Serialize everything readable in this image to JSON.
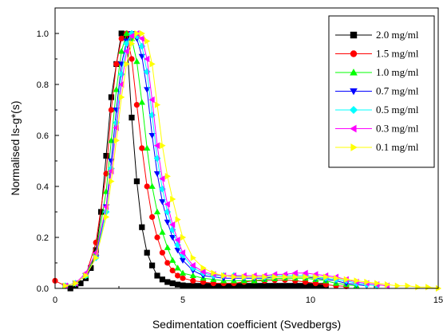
{
  "chart_data": {
    "type": "line",
    "title": "",
    "xlabel": "Sedimentation coefficient (Svedbergs)",
    "ylabel": "Normalised ls-g*(s)",
    "xlim": [
      0,
      15
    ],
    "ylim": [
      0,
      1.1
    ],
    "xticks": [
      "0",
      "5",
      "10",
      "15"
    ],
    "yticks": [
      "0.0",
      "0.2",
      "0.4",
      "0.6",
      "0.8",
      "1.0"
    ],
    "grid": false,
    "legend_position": "top-right",
    "series": [
      {
        "name": "2.0 mg/ml",
        "color": "#000000",
        "marker": "square",
        "x": [
          0.6,
          0.8,
          1.0,
          1.2,
          1.4,
          1.6,
          1.8,
          2.0,
          2.2,
          2.4,
          2.6,
          2.8,
          3.0,
          3.2,
          3.4,
          3.6,
          3.8,
          4.0,
          4.2,
          4.4,
          4.6,
          4.8,
          5.0,
          5.2,
          5.4,
          5.6,
          5.8,
          6.0,
          6.2,
          6.4,
          6.6,
          6.8,
          7.0,
          7.2,
          7.4,
          7.6,
          7.8,
          8.0,
          8.2,
          8.4,
          8.6,
          8.8,
          9.0,
          9.2,
          9.4,
          9.6,
          9.8,
          10.0,
          10.2,
          10.4,
          10.6
        ],
        "y": [
          0.0,
          0.01,
          0.02,
          0.04,
          0.08,
          0.15,
          0.3,
          0.52,
          0.75,
          0.88,
          1.0,
          0.99,
          0.67,
          0.42,
          0.24,
          0.14,
          0.09,
          0.05,
          0.035,
          0.025,
          0.02,
          0.015,
          0.012,
          0.01,
          0.01,
          0.01,
          0.01,
          0.01,
          0.01,
          0.01,
          0.01,
          0.01,
          0.01,
          0.01,
          0.01,
          0.01,
          0.01,
          0.01,
          0.01,
          0.01,
          0.01,
          0.01,
          0.01,
          0.01,
          0.01,
          0.01,
          0.01,
          0.01,
          0.01,
          0.01,
          0.01
        ]
      },
      {
        "name": "1.5 mg/ml",
        "color": "#ff0000",
        "marker": "circle",
        "x": [
          0.0,
          0.4,
          0.8,
          1.2,
          1.6,
          2.0,
          2.2,
          2.4,
          2.6,
          2.8,
          3.0,
          3.2,
          3.4,
          3.6,
          3.8,
          4.0,
          4.2,
          4.4,
          4.6,
          4.8,
          5.0,
          5.4,
          5.8,
          6.2,
          6.6,
          7.0,
          7.4,
          7.8,
          8.2,
          8.6,
          9.0,
          9.4,
          9.8,
          10.2,
          10.6,
          11.0,
          11.4
        ],
        "y": [
          0.03,
          0.01,
          0.02,
          0.05,
          0.18,
          0.45,
          0.7,
          0.88,
          0.98,
          1.0,
          0.9,
          0.72,
          0.55,
          0.4,
          0.28,
          0.2,
          0.14,
          0.1,
          0.07,
          0.05,
          0.04,
          0.03,
          0.025,
          0.02,
          0.02,
          0.02,
          0.025,
          0.03,
          0.03,
          0.032,
          0.033,
          0.03,
          0.025,
          0.02,
          0.015,
          0.01,
          0.008
        ]
      },
      {
        "name": "1.0 mg/ml",
        "color": "#00ff00",
        "marker": "triangle-up",
        "x": [
          0.4,
          0.8,
          1.2,
          1.6,
          2.0,
          2.2,
          2.4,
          2.6,
          2.8,
          3.0,
          3.2,
          3.4,
          3.6,
          3.8,
          4.0,
          4.2,
          4.4,
          4.6,
          4.8,
          5.0,
          5.4,
          5.8,
          6.2,
          6.6,
          7.0,
          7.4,
          7.8,
          8.2,
          8.6,
          9.0,
          9.4,
          9.8,
          10.2,
          10.6,
          11.0,
          11.4,
          11.8
        ],
        "y": [
          0.01,
          0.02,
          0.05,
          0.14,
          0.38,
          0.58,
          0.78,
          0.93,
          1.0,
          0.98,
          0.89,
          0.73,
          0.55,
          0.4,
          0.3,
          0.22,
          0.16,
          0.11,
          0.08,
          0.06,
          0.05,
          0.04,
          0.035,
          0.03,
          0.03,
          0.03,
          0.03,
          0.035,
          0.038,
          0.04,
          0.04,
          0.04,
          0.035,
          0.03,
          0.02,
          0.015,
          0.01
        ]
      },
      {
        "name": "0.7 mg/ml",
        "color": "#0000ff",
        "marker": "triangle-down",
        "x": [
          0.4,
          0.8,
          1.2,
          1.6,
          2.0,
          2.2,
          2.4,
          2.6,
          2.8,
          3.0,
          3.2,
          3.4,
          3.6,
          3.8,
          4.0,
          4.2,
          4.4,
          4.6,
          4.8,
          5.0,
          5.4,
          5.8,
          6.2,
          6.6,
          7.0,
          7.4,
          7.8,
          8.2,
          8.6,
          9.0,
          9.4,
          9.8,
          10.2,
          10.6,
          11.0,
          11.4,
          11.8,
          12.2
        ],
        "y": [
          0.01,
          0.02,
          0.05,
          0.12,
          0.32,
          0.5,
          0.7,
          0.88,
          0.97,
          1.0,
          0.98,
          0.91,
          0.78,
          0.6,
          0.45,
          0.34,
          0.26,
          0.2,
          0.15,
          0.11,
          0.07,
          0.05,
          0.045,
          0.04,
          0.04,
          0.04,
          0.04,
          0.04,
          0.045,
          0.045,
          0.045,
          0.045,
          0.04,
          0.035,
          0.03,
          0.02,
          0.015,
          0.01
        ]
      },
      {
        "name": "0.5 mg/ml",
        "color": "#00ffff",
        "marker": "diamond",
        "x": [
          0.4,
          0.8,
          1.2,
          1.6,
          2.0,
          2.2,
          2.4,
          2.6,
          2.8,
          3.0,
          3.2,
          3.4,
          3.6,
          3.8,
          4.0,
          4.2,
          4.4,
          4.6,
          4.8,
          5.0,
          5.4,
          5.8,
          6.2,
          6.6,
          7.0,
          7.4,
          7.8,
          8.2,
          8.6,
          9.0,
          9.4,
          9.8,
          10.2,
          10.6,
          11.0,
          11.4,
          11.8,
          12.2,
          12.6
        ],
        "y": [
          0.01,
          0.02,
          0.05,
          0.12,
          0.3,
          0.47,
          0.65,
          0.84,
          0.96,
          1.0,
          0.99,
          0.95,
          0.85,
          0.68,
          0.51,
          0.39,
          0.3,
          0.23,
          0.17,
          0.13,
          0.08,
          0.06,
          0.05,
          0.05,
          0.05,
          0.045,
          0.045,
          0.045,
          0.05,
          0.05,
          0.05,
          0.05,
          0.045,
          0.04,
          0.035,
          0.03,
          0.02,
          0.015,
          0.01
        ]
      },
      {
        "name": "0.3 mg/ml",
        "color": "#ff00ff",
        "marker": "triangle-left",
        "x": [
          0.4,
          0.8,
          1.2,
          1.6,
          2.0,
          2.2,
          2.4,
          2.6,
          2.8,
          3.0,
          3.2,
          3.4,
          3.6,
          3.8,
          4.0,
          4.2,
          4.4,
          4.6,
          4.8,
          5.0,
          5.4,
          5.8,
          6.2,
          6.6,
          7.0,
          7.4,
          7.8,
          8.2,
          8.6,
          9.0,
          9.4,
          9.8,
          10.2,
          10.6,
          11.0,
          11.4,
          11.8,
          12.2,
          12.6,
          13.0
        ],
        "y": [
          0.01,
          0.02,
          0.06,
          0.14,
          0.32,
          0.46,
          0.63,
          0.8,
          0.93,
          0.99,
          1.0,
          0.98,
          0.9,
          0.74,
          0.56,
          0.43,
          0.33,
          0.25,
          0.19,
          0.14,
          0.09,
          0.065,
          0.055,
          0.05,
          0.05,
          0.05,
          0.05,
          0.05,
          0.055,
          0.055,
          0.06,
          0.06,
          0.055,
          0.05,
          0.045,
          0.035,
          0.025,
          0.02,
          0.015,
          0.01
        ]
      },
      {
        "name": "0.1 mg/ml",
        "color": "#ffff00",
        "marker": "triangle-right",
        "x": [
          0.4,
          0.8,
          1.2,
          1.6,
          2.0,
          2.2,
          2.4,
          2.6,
          2.8,
          3.0,
          3.2,
          3.4,
          3.6,
          3.8,
          4.0,
          4.2,
          4.4,
          4.6,
          4.8,
          5.0,
          5.4,
          5.8,
          6.2,
          6.6,
          7.0,
          7.4,
          7.8,
          8.2,
          8.6,
          9.0,
          9.4,
          9.8,
          10.2,
          10.6,
          11.0,
          11.4,
          11.8,
          12.2,
          12.6,
          13.0,
          13.4,
          13.8,
          14.2,
          14.6,
          15.0
        ],
        "y": [
          0.01,
          0.02,
          0.05,
          0.12,
          0.28,
          0.42,
          0.58,
          0.75,
          0.88,
          0.96,
          1.0,
          1.0,
          0.97,
          0.88,
          0.72,
          0.56,
          0.44,
          0.35,
          0.27,
          0.2,
          0.12,
          0.08,
          0.06,
          0.05,
          0.045,
          0.045,
          0.045,
          0.045,
          0.045,
          0.045,
          0.045,
          0.045,
          0.045,
          0.045,
          0.04,
          0.035,
          0.03,
          0.025,
          0.02,
          0.015,
          0.01,
          0.01,
          0.005,
          0.005,
          0.0
        ]
      }
    ]
  }
}
